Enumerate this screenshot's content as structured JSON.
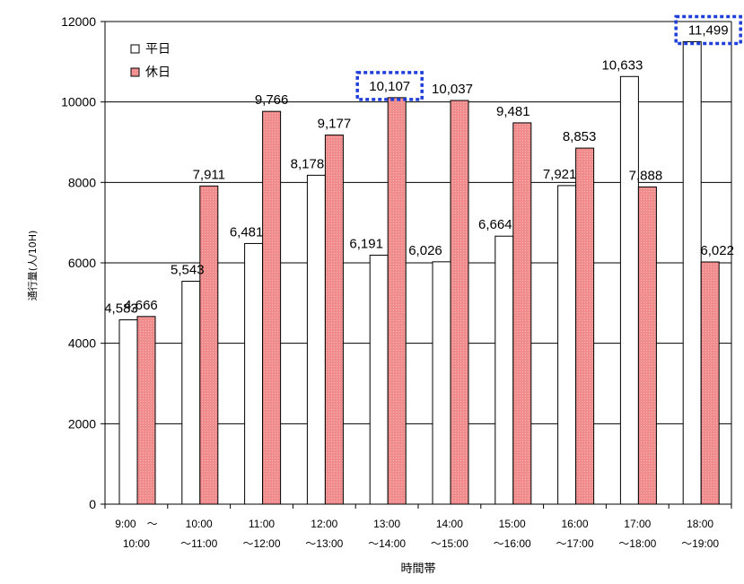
{
  "chart_data": {
    "type": "bar",
    "title": "",
    "xlabel": "時間帯",
    "ylabel": "通行量(人/10H)",
    "ylim": [
      0,
      12000
    ],
    "yticks": [
      0,
      2000,
      4000,
      6000,
      8000,
      10000,
      12000
    ],
    "grid": true,
    "legend_position": "top-left",
    "categories": [
      [
        "9:00　～",
        "10:00"
      ],
      [
        "10:00",
        "～11:00"
      ],
      [
        "11:00",
        "～12:00"
      ],
      [
        "12:00",
        "～13:00"
      ],
      [
        "13:00",
        "～14:00"
      ],
      [
        "14:00",
        "～15:00"
      ],
      [
        "15:00",
        "～16:00"
      ],
      [
        "16:00",
        "～17:00"
      ],
      [
        "17:00",
        "～18:00"
      ],
      [
        "18:00",
        "～19:00"
      ]
    ],
    "series": [
      {
        "name": "平日",
        "color": "#ffffff",
        "values": [
          4583,
          5543,
          6481,
          8178,
          6191,
          6026,
          6664,
          7921,
          10633,
          11499
        ],
        "labels": [
          "4,583",
          "5,543",
          "6,481",
          "8,178",
          "6,191",
          "6,026",
          "6,664",
          "7,921",
          "10,633",
          "11,499"
        ]
      },
      {
        "name": "休日",
        "color": "#f08c8c",
        "values": [
          4666,
          7911,
          9766,
          9177,
          10107,
          10037,
          9481,
          8853,
          7888,
          6022
        ],
        "labels": [
          "4,666",
          "7,911",
          "9,766",
          "9,177",
          "10,107",
          "10,037",
          "9,481",
          "8,853",
          "7,888",
          "6,022"
        ]
      }
    ],
    "highlights": [
      {
        "series": 1,
        "category": 4
      },
      {
        "series": 0,
        "category": 9
      }
    ]
  }
}
